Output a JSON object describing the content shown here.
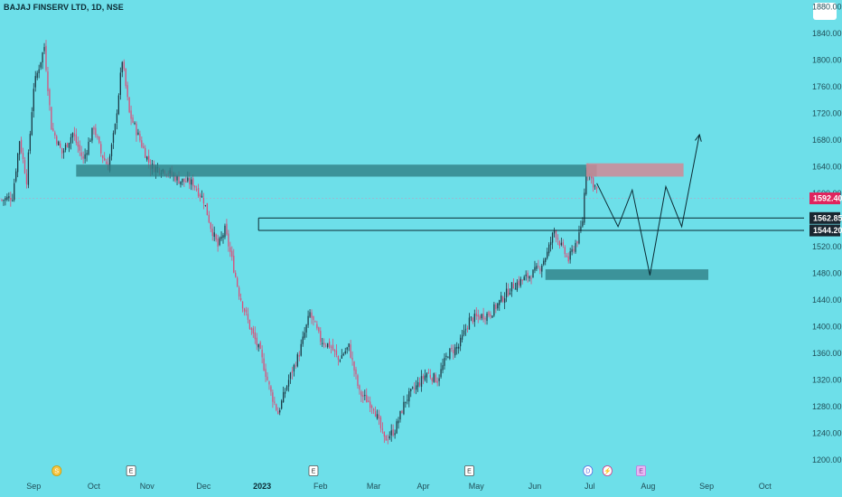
{
  "header": {
    "symbol_title": "BAJAJ FINSERV LTD, 1D, NSE"
  },
  "colors": {
    "background": "#6ddfe9",
    "up": "#1d3b47",
    "down": "#d94f7a",
    "zone": "#2f7f86",
    "target_zone": "#d08a97",
    "price_tag": "#e0245e",
    "level_tag": "#1a2630"
  },
  "chart_data": {
    "type": "candlestick",
    "title": "BAJAJ FINSERV LTD, 1D, NSE",
    "ylim": [
      1185,
      1890
    ],
    "y_ticks": [
      "1880.00",
      "1840.00",
      "1800.00",
      "1760.00",
      "1720.00",
      "1680.00",
      "1640.00",
      "1600.00",
      "1560.00",
      "1520.00",
      "1480.00",
      "1440.00",
      "1400.00",
      "1360.00",
      "1320.00",
      "1280.00",
      "1240.00",
      "1200.00"
    ],
    "x_ticks": [
      "Sep",
      "Oct",
      "Nov",
      "Dec",
      "2023",
      "Feb",
      "Mar",
      "Apr",
      "May",
      "Jun",
      "Jul",
      "Aug",
      "Sep",
      "Oct"
    ],
    "bold_x_tick": "2023",
    "price_path": [
      {
        "i": 0,
        "v": 1590
      },
      {
        "i": 6,
        "v": 1595
      },
      {
        "i": 10,
        "v": 1680
      },
      {
        "i": 14,
        "v": 1620
      },
      {
        "i": 18,
        "v": 1760
      },
      {
        "i": 24,
        "v": 1820
      },
      {
        "i": 28,
        "v": 1700
      },
      {
        "i": 34,
        "v": 1660
      },
      {
        "i": 40,
        "v": 1690
      },
      {
        "i": 46,
        "v": 1650
      },
      {
        "i": 52,
        "v": 1700
      },
      {
        "i": 56,
        "v": 1660
      },
      {
        "i": 60,
        "v": 1640
      },
      {
        "i": 64,
        "v": 1700
      },
      {
        "i": 68,
        "v": 1800
      },
      {
        "i": 72,
        "v": 1720
      },
      {
        "i": 78,
        "v": 1680
      },
      {
        "i": 84,
        "v": 1640
      },
      {
        "i": 92,
        "v": 1635
      },
      {
        "i": 100,
        "v": 1620
      },
      {
        "i": 108,
        "v": 1615
      },
      {
        "i": 114,
        "v": 1590
      },
      {
        "i": 118,
        "v": 1550
      },
      {
        "i": 122,
        "v": 1520
      },
      {
        "i": 126,
        "v": 1545
      },
      {
        "i": 130,
        "v": 1500
      },
      {
        "i": 134,
        "v": 1450
      },
      {
        "i": 140,
        "v": 1400
      },
      {
        "i": 146,
        "v": 1360
      },
      {
        "i": 152,
        "v": 1300
      },
      {
        "i": 156,
        "v": 1270
      },
      {
        "i": 162,
        "v": 1320
      },
      {
        "i": 168,
        "v": 1360
      },
      {
        "i": 174,
        "v": 1420
      },
      {
        "i": 180,
        "v": 1380
      },
      {
        "i": 186,
        "v": 1370
      },
      {
        "i": 190,
        "v": 1350
      },
      {
        "i": 196,
        "v": 1370
      },
      {
        "i": 202,
        "v": 1300
      },
      {
        "i": 210,
        "v": 1280
      },
      {
        "i": 216,
        "v": 1230
      },
      {
        "i": 222,
        "v": 1245
      },
      {
        "i": 228,
        "v": 1290
      },
      {
        "i": 234,
        "v": 1310
      },
      {
        "i": 240,
        "v": 1330
      },
      {
        "i": 246,
        "v": 1320
      },
      {
        "i": 252,
        "v": 1360
      },
      {
        "i": 258,
        "v": 1370
      },
      {
        "i": 264,
        "v": 1410
      },
      {
        "i": 270,
        "v": 1415
      },
      {
        "i": 276,
        "v": 1420
      },
      {
        "i": 282,
        "v": 1440
      },
      {
        "i": 288,
        "v": 1460
      },
      {
        "i": 294,
        "v": 1470
      },
      {
        "i": 300,
        "v": 1480
      },
      {
        "i": 304,
        "v": 1490
      },
      {
        "i": 308,
        "v": 1510
      },
      {
        "i": 312,
        "v": 1545
      },
      {
        "i": 316,
        "v": 1520
      },
      {
        "i": 320,
        "v": 1500
      },
      {
        "i": 324,
        "v": 1525
      },
      {
        "i": 326,
        "v": 1535
      },
      {
        "i": 328,
        "v": 1560
      },
      {
        "i": 330,
        "v": 1640
      },
      {
        "i": 334,
        "v": 1615
      },
      {
        "i": 336,
        "v": 1605
      }
    ],
    "candle_count": 337,
    "first_x": 2,
    "step": 1.96,
    "zones": [
      {
        "from_i": 42,
        "to_i": 336,
        "low": 1625,
        "high": 1643,
        "color": "zone"
      },
      {
        "from_i": 330,
        "to_i": 385,
        "low": 1625,
        "high": 1645,
        "color": "target_zone"
      },
      {
        "from_i": 307,
        "to_i": 399,
        "low": 1470,
        "high": 1486,
        "color": "zone"
      }
    ],
    "horizontal_lines": [
      {
        "from_i": 145,
        "to_i": 470,
        "value": 1562.85
      },
      {
        "from_i": 145,
        "to_i": 470,
        "value": 1544.2
      }
    ],
    "projection": [
      {
        "i": 336,
        "v": 1615
      },
      {
        "i": 348,
        "v": 1550
      },
      {
        "i": 356,
        "v": 1605
      },
      {
        "i": 366,
        "v": 1477
      },
      {
        "i": 375,
        "v": 1610
      },
      {
        "i": 384,
        "v": 1550
      },
      {
        "i": 394,
        "v": 1688
      }
    ],
    "last_price": "1592.40",
    "price_tags": [
      {
        "label": "1592.40",
        "value": 1592.4,
        "kind": "last"
      },
      {
        "label": "1562.85",
        "value": 1562.85,
        "kind": "level"
      },
      {
        "label": "1544.20",
        "value": 1544.2,
        "kind": "level"
      }
    ],
    "events": [
      {
        "label": "S",
        "i": 31,
        "kind": "dividend"
      },
      {
        "label": "E",
        "i": 73,
        "kind": "earnings"
      },
      {
        "label": "E",
        "i": 176,
        "kind": "earnings"
      },
      {
        "label": "E",
        "i": 264,
        "kind": "earnings"
      },
      {
        "label": "D",
        "i": 331,
        "kind": "dividend-blue"
      },
      {
        "label": "⚡",
        "i": 342,
        "kind": "split"
      },
      {
        "label": "E",
        "i": 361,
        "kind": "earnings-future"
      }
    ]
  }
}
